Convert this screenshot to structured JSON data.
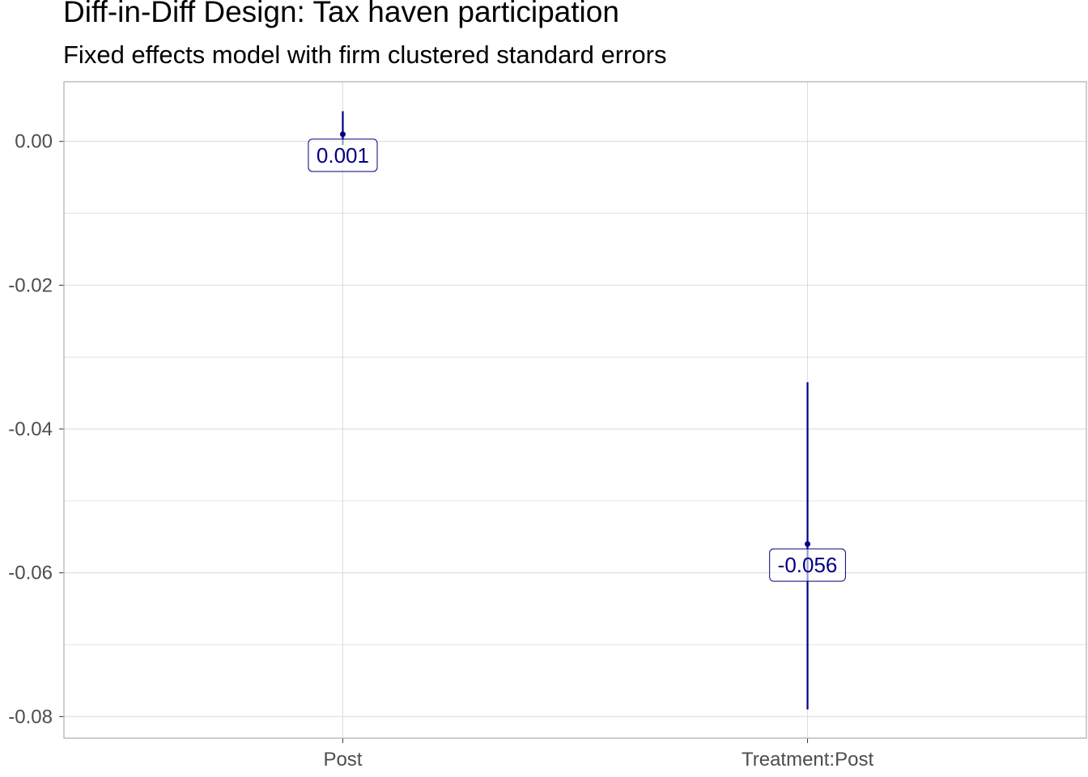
{
  "chart_data": {
    "type": "coefficient-plot",
    "title": "Diff-in-Diff Design: Tax haven participation",
    "subtitle": "Fixed effects model with firm clustered standard errors",
    "xlabel": "",
    "ylabel": "",
    "categories": [
      "Post",
      "Treatment:Post"
    ],
    "estimates": [
      0.001,
      -0.056
    ],
    "ci_low": [
      -0.0005,
      -0.079
    ],
    "ci_high": [
      0.0042,
      -0.0335
    ],
    "labels": [
      "0.001",
      "-0.056"
    ],
    "ylim": [
      -0.083,
      0.0083
    ],
    "yticks": [
      0.0,
      -0.02,
      -0.04,
      -0.06,
      -0.08
    ],
    "ytick_labels": [
      "0.00",
      "-0.02",
      "-0.04",
      "-0.06",
      "-0.08"
    ],
    "grid": true,
    "legend": "none",
    "colors": {
      "series": "#000080",
      "grid": "#dedede",
      "panel_border": "#b3b3b3",
      "tick_text": "#4d4d4d"
    }
  }
}
